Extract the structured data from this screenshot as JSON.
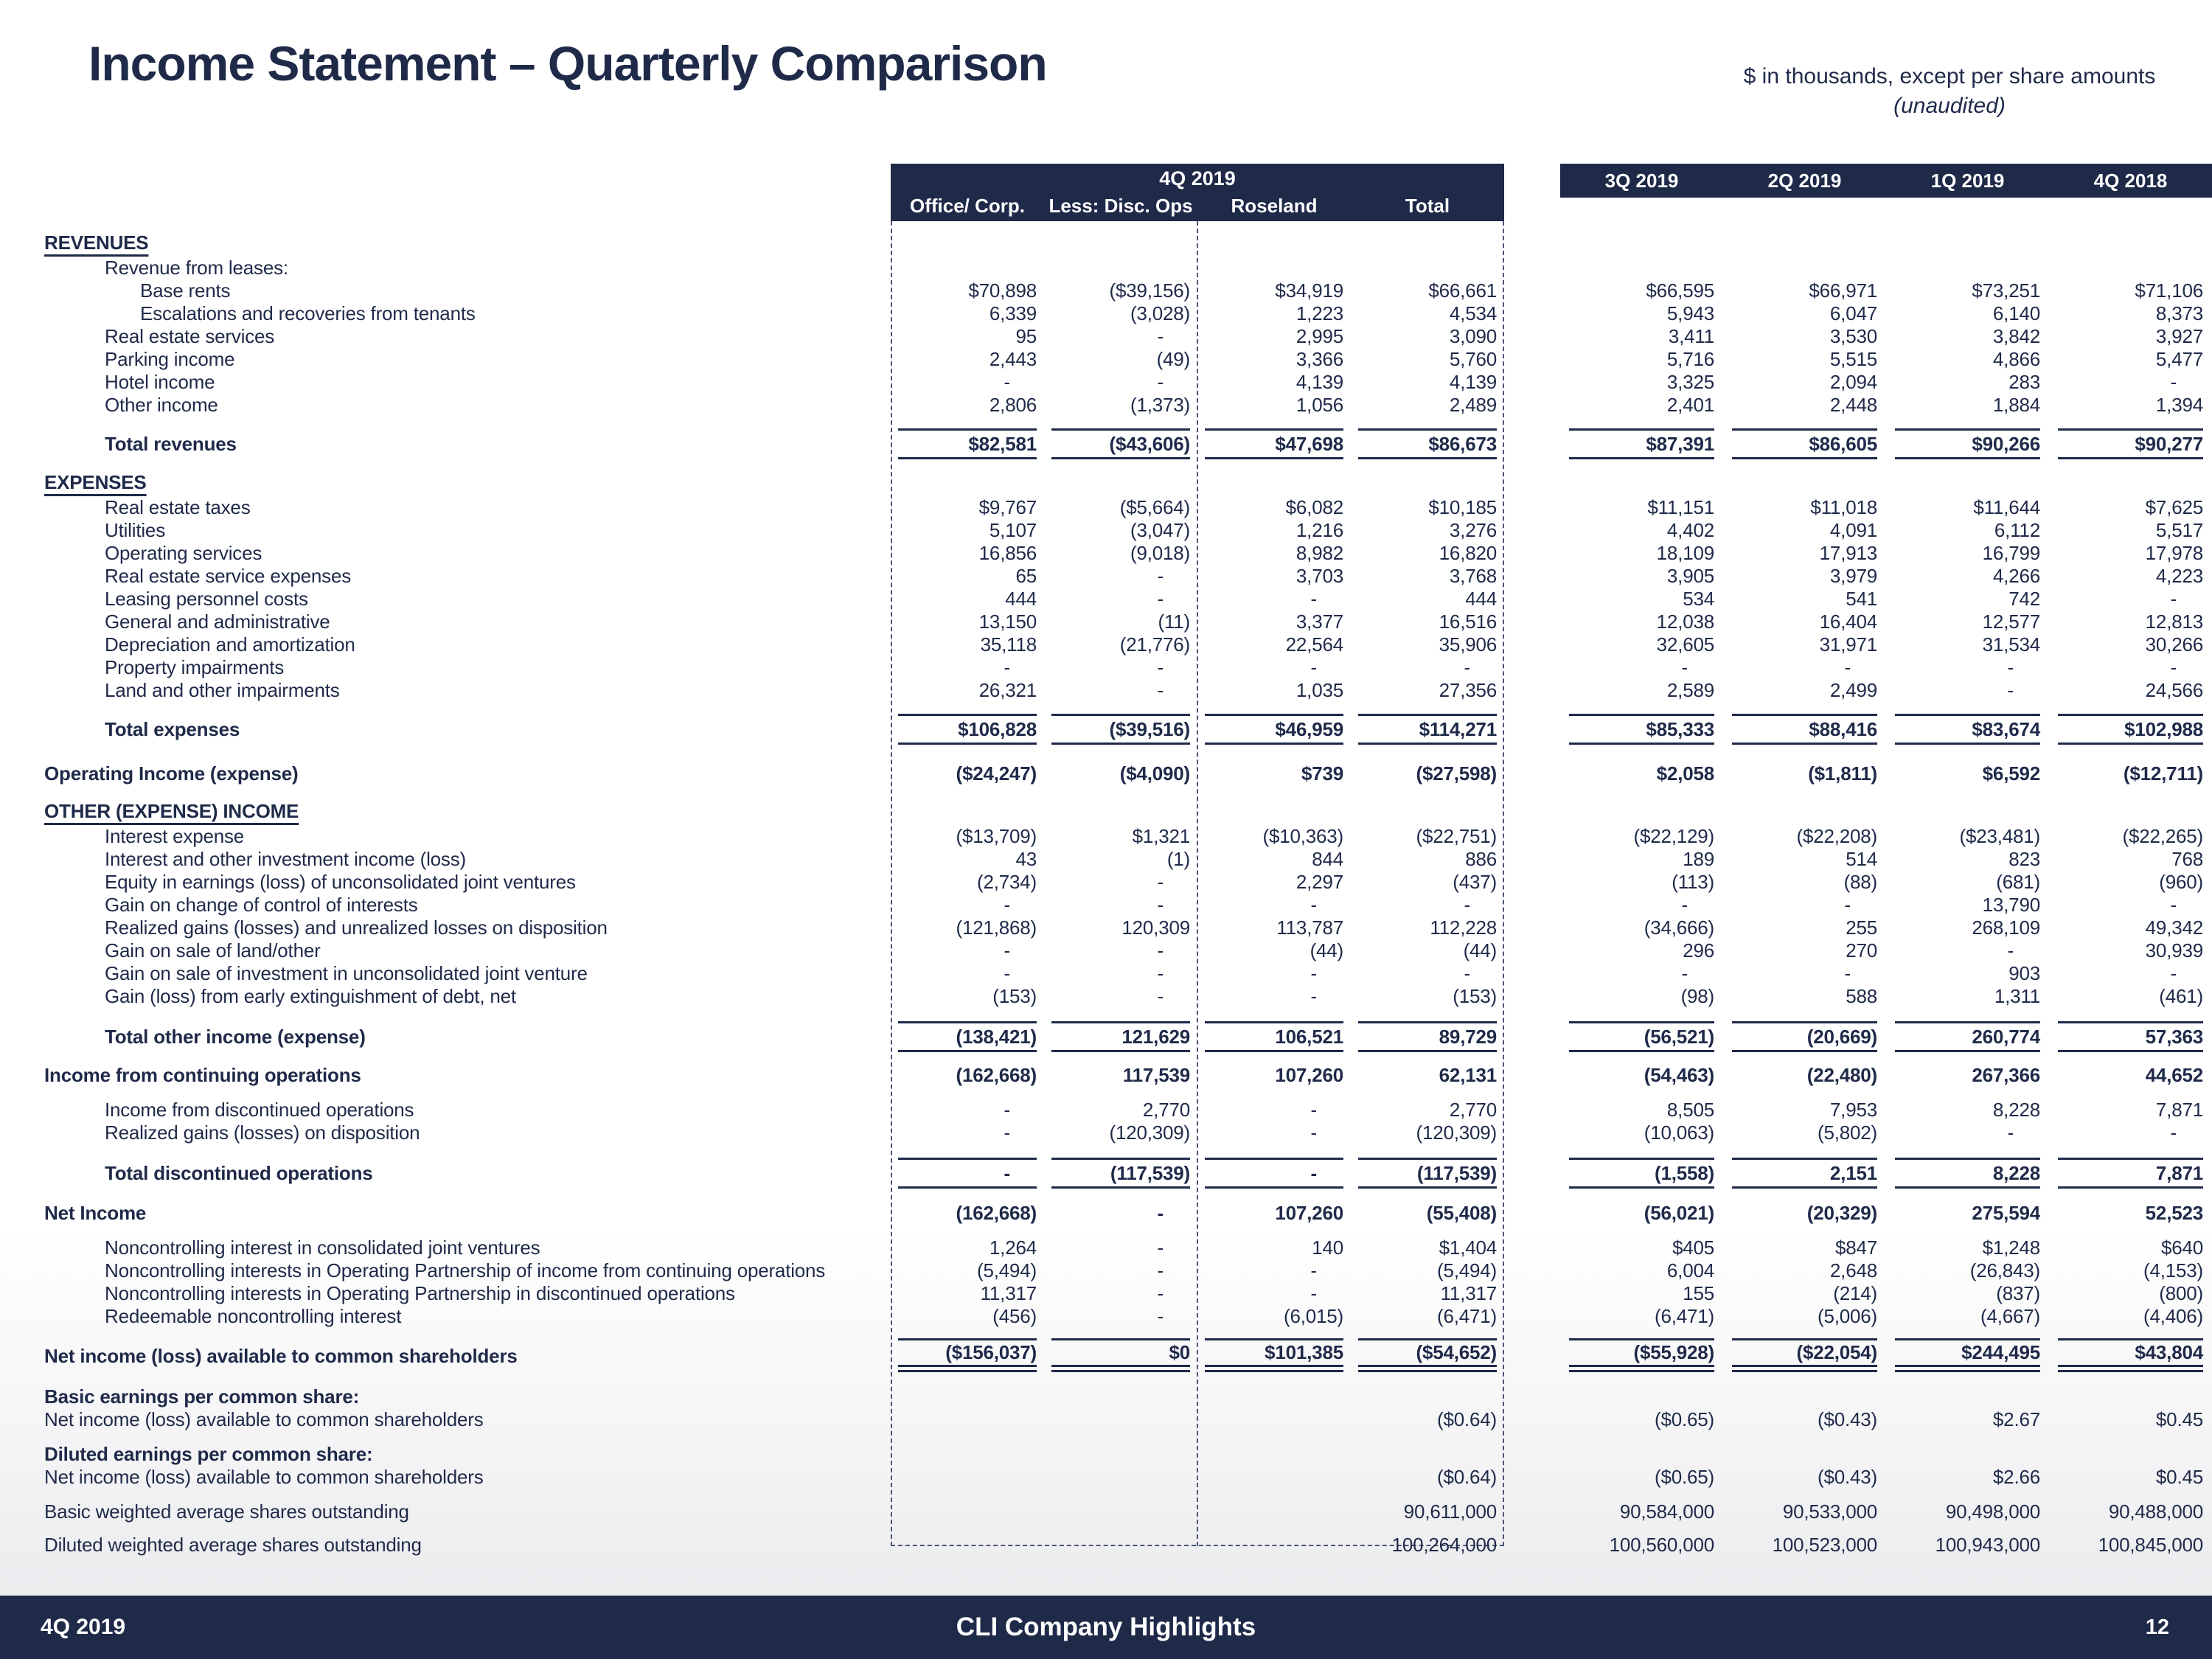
{
  "slide": {
    "title": "Income Statement – Quarterly Comparison",
    "note_line1": "$ in thousands, except per share amounts",
    "note_line2": "(unaudited)",
    "footer": {
      "left": "4Q 2019",
      "center": "CLI Company Highlights",
      "page": "12"
    }
  },
  "colors": {
    "navy": "#1f2a49",
    "band_text": "#ffffff"
  },
  "table": {
    "group_header": "4Q 2019",
    "subcolumns": [
      "Office/ Corp.",
      "Less: Disc. Ops",
      "Roseland",
      "Total"
    ],
    "quarter_columns": [
      "3Q 2019",
      "2Q 2019",
      "1Q 2019",
      "4Q 2018"
    ],
    "rows": [
      {
        "label": "REVENUES",
        "style": "section"
      },
      {
        "label": "Revenue from leases:",
        "indent": 1
      },
      {
        "label": "Base rents",
        "indent": 2,
        "values": [
          "$70,898",
          "($39,156)",
          "$34,919",
          "$66,661",
          "$66,595",
          "$66,971",
          "$73,251",
          "$71,106"
        ]
      },
      {
        "label": "Escalations and recoveries from tenants",
        "indent": 2,
        "values": [
          "6,339",
          "(3,028)",
          "1,223",
          "4,534",
          "5,943",
          "6,047",
          "6,140",
          "8,373"
        ]
      },
      {
        "label": "Real estate services",
        "indent": 1,
        "values": [
          "95",
          "-",
          "2,995",
          "3,090",
          "3,411",
          "3,530",
          "3,842",
          "3,927"
        ]
      },
      {
        "label": "Parking income",
        "indent": 1,
        "values": [
          "2,443",
          "(49)",
          "3,366",
          "5,760",
          "5,716",
          "5,515",
          "4,866",
          "5,477"
        ]
      },
      {
        "label": "Hotel income",
        "indent": 1,
        "values": [
          "-",
          "-",
          "4,139",
          "4,139",
          "3,325",
          "2,094",
          "283",
          "-"
        ]
      },
      {
        "label": "Other income",
        "indent": 1,
        "values": [
          "2,806",
          "(1,373)",
          "1,056",
          "2,489",
          "2,401",
          "2,448",
          "1,884",
          "1,394"
        ]
      },
      {
        "label": "Total revenues",
        "indent": 1,
        "style": "bold",
        "rule": "totals",
        "space": 16,
        "values": [
          "$82,581",
          "($43,606)",
          "$47,698",
          "$86,673",
          "$87,391",
          "$86,605",
          "$90,266",
          "$90,277"
        ]
      },
      {
        "label": "EXPENSES",
        "style": "section",
        "space": 12
      },
      {
        "label": "Real estate taxes",
        "indent": 1,
        "values": [
          "$9,767",
          "($5,664)",
          "$6,082",
          "$10,185",
          "$11,151",
          "$11,018",
          "$11,644",
          "$7,625"
        ]
      },
      {
        "label": "Utilities",
        "indent": 1,
        "values": [
          "5,107",
          "(3,047)",
          "1,216",
          "3,276",
          "4,402",
          "4,091",
          "6,112",
          "5,517"
        ]
      },
      {
        "label": "Operating services",
        "indent": 1,
        "values": [
          "16,856",
          "(9,018)",
          "8,982",
          "16,820",
          "18,109",
          "17,913",
          "16,799",
          "17,978"
        ]
      },
      {
        "label": "Real estate service expenses",
        "indent": 1,
        "values": [
          "65",
          "-",
          "3,703",
          "3,768",
          "3,905",
          "3,979",
          "4,266",
          "4,223"
        ]
      },
      {
        "label": "Leasing personnel costs",
        "indent": 1,
        "values": [
          "444",
          "-",
          "-",
          "444",
          "534",
          "541",
          "742",
          "-"
        ]
      },
      {
        "label": "General and administrative",
        "indent": 1,
        "values": [
          "13,150",
          "(11)",
          "3,377",
          "16,516",
          "12,038",
          "16,404",
          "12,577",
          "12,813"
        ]
      },
      {
        "label": "Depreciation and amortization",
        "indent": 1,
        "values": [
          "35,118",
          "(21,776)",
          "22,564",
          "35,906",
          "32,605",
          "31,971",
          "31,534",
          "30,266"
        ]
      },
      {
        "label": "Property impairments",
        "indent": 1,
        "values": [
          "-",
          "-",
          "-",
          "-",
          "-",
          "-",
          "-",
          "-"
        ]
      },
      {
        "label": "Land and other impairments",
        "indent": 1,
        "values": [
          "26,321",
          "-",
          "1,035",
          "27,356",
          "2,589",
          "2,499",
          "-",
          "24,566"
        ]
      },
      {
        "label": "Total expenses",
        "indent": 1,
        "style": "bold",
        "rule": "totals",
        "space": 16,
        "values": [
          "$106,828",
          "($39,516)",
          "$46,959",
          "$114,271",
          "$85,333",
          "$88,416",
          "$83,674",
          "$102,988"
        ]
      },
      {
        "label": "Operating Income (expense)",
        "style": "bold",
        "space": 24,
        "values": [
          "($24,247)",
          "($4,090)",
          "$739",
          "($27,598)",
          "$2,058",
          "($1,811)",
          "$6,592",
          "($12,711)"
        ]
      },
      {
        "label": "OTHER (EXPENSE) INCOME",
        "style": "section",
        "space": 16
      },
      {
        "label": "Interest expense",
        "indent": 1,
        "values": [
          "($13,709)",
          "$1,321",
          "($10,363)",
          "($22,751)",
          "($22,129)",
          "($22,208)",
          "($23,481)",
          "($22,265)"
        ]
      },
      {
        "label": "Interest and other investment income (loss)",
        "indent": 1,
        "values": [
          "43",
          "(1)",
          "844",
          "886",
          "189",
          "514",
          "823",
          "768"
        ]
      },
      {
        "label": "Equity in earnings (loss) of unconsolidated joint ventures",
        "indent": 1,
        "values": [
          "(2,734)",
          "-",
          "2,297",
          "(437)",
          "(113)",
          "(88)",
          "(681)",
          "(960)"
        ]
      },
      {
        "label": "Gain on change of control of interests",
        "indent": 1,
        "values": [
          "-",
          "-",
          "-",
          "-",
          "-",
          "-",
          "13,790",
          "-"
        ]
      },
      {
        "label": "Realized gains (losses) and unrealized losses on disposition",
        "indent": 1,
        "values": [
          "(121,868)",
          "120,309",
          "113,787",
          "112,228",
          "(34,666)",
          "255",
          "268,109",
          "49,342"
        ]
      },
      {
        "label": "Gain on sale of land/other",
        "indent": 1,
        "values": [
          "-",
          "-",
          "(44)",
          "(44)",
          "296",
          "270",
          "-",
          "30,939"
        ]
      },
      {
        "label": "Gain on sale of investment in unconsolidated joint venture",
        "indent": 1,
        "values": [
          "-",
          "-",
          "-",
          "-",
          "-",
          "-",
          "903",
          "-"
        ]
      },
      {
        "label": "Gain (loss) from early extinguishment of debt, net",
        "indent": 1,
        "values": [
          "(153)",
          "-",
          "-",
          "(153)",
          "(98)",
          "588",
          "1,311",
          "(461)"
        ]
      },
      {
        "label": "Total other income (expense)",
        "indent": 1,
        "style": "bold",
        "rule": "totals",
        "space": 18,
        "values": [
          "(138,421)",
          "121,629",
          "106,521",
          "89,729",
          "(56,521)",
          "(20,669)",
          "260,774",
          "57,363"
        ]
      },
      {
        "label": "Income from continuing operations",
        "style": "bold",
        "space": 16,
        "values": [
          "(162,668)",
          "117,539",
          "107,260",
          "62,131",
          "(54,463)",
          "(22,480)",
          "267,366",
          "44,652"
        ]
      },
      {
        "label": "Income from discontinued operations",
        "indent": 1,
        "space": 16,
        "values": [
          "-",
          "2,770",
          "-",
          "2,770",
          "8,505",
          "7,953",
          "8,228",
          "7,871"
        ]
      },
      {
        "label": "Realized gains (losses) on disposition",
        "indent": 1,
        "values": [
          "-",
          "(120,309)",
          "-",
          "(120,309)",
          "(10,063)",
          "(5,802)",
          "-",
          "-"
        ]
      },
      {
        "label": "Total discontinued operations",
        "indent": 1,
        "style": "bold",
        "rule": "totals",
        "space": 18,
        "values": [
          "-",
          "(117,539)",
          "-",
          "(117,539)",
          "(1,558)",
          "2,151",
          "8,228",
          "7,871"
        ]
      },
      {
        "label": "Net Income",
        "style": "bold",
        "space": 18,
        "values": [
          "(162,668)",
          "-",
          "107,260",
          "(55,408)",
          "(56,021)",
          "(20,329)",
          "275,594",
          "52,523"
        ]
      },
      {
        "label": "Noncontrolling interest in consolidated joint ventures",
        "indent": 1,
        "space": 16,
        "values": [
          "1,264",
          "-",
          "140",
          "$1,404",
          "$405",
          "$847",
          "$1,248",
          "$640"
        ]
      },
      {
        "label": "Noncontrolling interests in Operating Partnership of income from continuing operations",
        "indent": 1,
        "values": [
          "(5,494)",
          "-",
          "-",
          "(5,494)",
          "6,004",
          "2,648",
          "(26,843)",
          "(4,153)"
        ]
      },
      {
        "label": "Noncontrolling interests in Operating Partnership in discontinued operations",
        "indent": 1,
        "values": [
          "11,317",
          "-",
          "-",
          "11,317",
          "155",
          "(214)",
          "(837)",
          "(800)"
        ]
      },
      {
        "label": "Redeemable noncontrolling interest",
        "indent": 1,
        "values": [
          "(456)",
          "-",
          "(6,015)",
          "(6,471)",
          "(6,471)",
          "(5,006)",
          "(4,667)",
          "(4,406)"
        ]
      },
      {
        "label": "Net income (loss) available to common shareholders",
        "style": "bold",
        "rule": "final",
        "space": 14,
        "values": [
          "($156,037)",
          "$0",
          "$101,385",
          "($54,652)",
          "($55,928)",
          "($22,054)",
          "$244,495",
          "$43,804"
        ]
      },
      {
        "label": "Basic earnings per common share:",
        "style": "bold",
        "space": 16
      },
      {
        "label": "Net income (loss) available to common shareholders",
        "values": [
          "",
          "",
          "",
          "($0.64)",
          "($0.65)",
          "($0.43)",
          "$2.67",
          "$0.45"
        ]
      },
      {
        "label": "Diluted earnings per common share:",
        "style": "bold",
        "space": 16
      },
      {
        "label": "Net income (loss) available to common shareholders",
        "values": [
          "",
          "",
          "",
          "($0.64)",
          "($0.65)",
          "($0.43)",
          "$2.66",
          "$0.45"
        ]
      },
      {
        "label": "Basic weighted average shares outstanding",
        "space": 16,
        "values": [
          "",
          "",
          "",
          "90,611,000",
          "90,584,000",
          "90,533,000",
          "90,498,000",
          "90,488,000"
        ]
      },
      {
        "label": "Diluted weighted average shares outstanding",
        "space": 14,
        "values": [
          "",
          "",
          "",
          "100,264,000",
          "100,560,000",
          "100,523,000",
          "100,943,000",
          "100,845,000"
        ]
      }
    ]
  }
}
